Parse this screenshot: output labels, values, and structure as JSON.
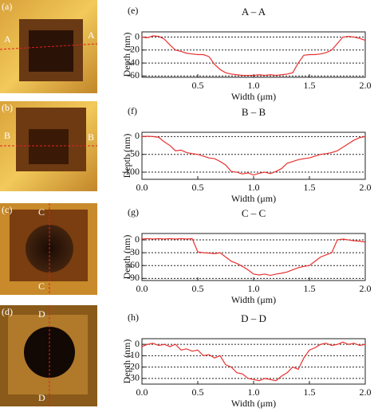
{
  "images": [
    {
      "label": "(a)",
      "markers": [
        "A",
        "A"
      ]
    },
    {
      "label": "(b)",
      "markers": [
        "B",
        "B"
      ]
    },
    {
      "label": "(c)",
      "markers": [
        "C",
        "C"
      ]
    },
    {
      "label": "(d)",
      "markers": [
        "D",
        "D"
      ]
    }
  ],
  "chart_data": [
    {
      "type": "line",
      "panel": "(e)",
      "title": "A – A",
      "xlabel": "Width (μm)",
      "ylabel": "Depth (nm)",
      "color": "#e8312f",
      "grid": true,
      "x": [
        0,
        0.05,
        0.1,
        0.15,
        0.2,
        0.25,
        0.3,
        0.35,
        0.4,
        0.45,
        0.5,
        0.55,
        0.6,
        0.65,
        0.7,
        0.75,
        0.8,
        0.85,
        0.9,
        0.95,
        1.0,
        1.05,
        1.1,
        1.15,
        1.2,
        1.25,
        1.3,
        1.35,
        1.4,
        1.45,
        1.5,
        1.55,
        1.6,
        1.65,
        1.7,
        1.75,
        1.8,
        1.85,
        1.9,
        1.95,
        2.0
      ],
      "values": [
        0,
        -1,
        2,
        1,
        -3,
        -12,
        -20,
        -22,
        -25,
        -26,
        -27,
        -27,
        -30,
        -42,
        -50,
        -55,
        -57,
        -58,
        -59,
        -59,
        -59,
        -58,
        -59,
        -58,
        -59,
        -58,
        -57,
        -55,
        -40,
        -28,
        -27,
        -27,
        -26,
        -24,
        -20,
        -10,
        0,
        1,
        0,
        -2,
        -5
      ],
      "xlim": [
        0,
        2
      ],
      "ylim": [
        -62,
        8
      ],
      "xticks": [
        0.5,
        {
          "value": 1,
          "label": "1.0"
        },
        1.5,
        {
          "value": 2,
          "label": "2.0"
        }
      ],
      "yticks": [
        0,
        -20,
        -40,
        -60
      ]
    },
    {
      "type": "line",
      "panel": "(f)",
      "title": "B – B",
      "xlabel": "Width (μm)",
      "ylabel": "Depth (nm)",
      "color": "#e8312f",
      "grid": true,
      "x": [
        0,
        0.05,
        0.1,
        0.15,
        0.2,
        0.25,
        0.3,
        0.35,
        0.4,
        0.45,
        0.5,
        0.55,
        0.6,
        0.65,
        0.7,
        0.75,
        0.8,
        0.85,
        0.9,
        0.95,
        1.0,
        1.05,
        1.1,
        1.15,
        1.2,
        1.25,
        1.3,
        1.35,
        1.4,
        1.45,
        1.5,
        1.55,
        1.6,
        1.65,
        1.7,
        1.75,
        1.8,
        1.85,
        1.9,
        1.95,
        2.0
      ],
      "values": [
        0,
        1,
        0,
        -2,
        -15,
        -25,
        -40,
        -38,
        -45,
        -48,
        -50,
        -55,
        -60,
        -62,
        -70,
        -80,
        -98,
        -100,
        -105,
        -102,
        -108,
        -103,
        -100,
        -104,
        -98,
        -90,
        -75,
        -70,
        -65,
        -62,
        -60,
        -55,
        -50,
        -48,
        -45,
        -40,
        -30,
        -20,
        -10,
        -3,
        0
      ],
      "xlim": [
        0,
        2
      ],
      "ylim": [
        -120,
        12
      ],
      "xticks": [
        {
          "value": 0,
          "label": "0.0"
        },
        0.5,
        {
          "value": 1,
          "label": "1.0"
        },
        1.5,
        {
          "value": 2,
          "label": "2.0"
        }
      ],
      "yticks": [
        0,
        -50,
        -100
      ]
    },
    {
      "type": "line",
      "panel": "(g)",
      "title": "C – C",
      "xlabel": "Width (μm)",
      "ylabel": "Depth (nm)",
      "color": "#e8312f",
      "grid": true,
      "x": [
        0,
        0.05,
        0.1,
        0.15,
        0.2,
        0.25,
        0.3,
        0.35,
        0.4,
        0.45,
        0.5,
        0.55,
        0.6,
        0.65,
        0.7,
        0.75,
        0.8,
        0.85,
        0.9,
        0.95,
        1.0,
        1.05,
        1.1,
        1.15,
        1.2,
        1.25,
        1.3,
        1.35,
        1.4,
        1.45,
        1.5,
        1.55,
        1.6,
        1.65,
        1.7,
        1.75,
        1.8,
        1.85,
        1.9,
        1.95,
        2.0
      ],
      "values": [
        2,
        3,
        2,
        3,
        2,
        3,
        2,
        3,
        2,
        3,
        -28,
        -30,
        -31,
        -32,
        -30,
        -40,
        -50,
        -55,
        -62,
        -70,
        -80,
        -82,
        -80,
        -83,
        -80,
        -78,
        -75,
        -70,
        -65,
        -62,
        -60,
        -50,
        -40,
        -35,
        -30,
        0,
        2,
        0,
        -2,
        -3,
        -5
      ],
      "xlim": [
        0,
        2
      ],
      "ylim": [
        -95,
        15
      ],
      "xticks": [
        {
          "value": 0,
          "label": "0.0"
        },
        0.5,
        {
          "value": 1,
          "label": "1.0"
        },
        1.5,
        {
          "value": 2,
          "label": "2.0"
        }
      ],
      "yticks": [
        0,
        -30,
        -60,
        -90
      ]
    },
    {
      "type": "line",
      "panel": "(h)",
      "title": "D – D",
      "xlabel": "Width (μm)",
      "ylabel": "Depth (nm)",
      "color": "#e8312f",
      "grid": true,
      "x": [
        0,
        0.05,
        0.1,
        0.15,
        0.2,
        0.25,
        0.3,
        0.35,
        0.4,
        0.45,
        0.5,
        0.55,
        0.6,
        0.65,
        0.7,
        0.75,
        0.8,
        0.85,
        0.9,
        0.95,
        1.0,
        1.05,
        1.1,
        1.15,
        1.2,
        1.25,
        1.3,
        1.35,
        1.4,
        1.45,
        1.5,
        1.55,
        1.6,
        1.65,
        1.7,
        1.75,
        1.8,
        1.85,
        1.9,
        1.95,
        2.0
      ],
      "values": [
        -2,
        0,
        1,
        -1,
        0,
        -2,
        0,
        -5,
        -4,
        -6,
        -5,
        -10,
        -9,
        -12,
        -10,
        -18,
        -20,
        -25,
        -26,
        -30,
        -31,
        -32,
        -30,
        -31,
        -32,
        -28,
        -25,
        -20,
        -22,
        -12,
        -5,
        -3,
        0,
        1,
        -1,
        0,
        2,
        0,
        1,
        -1,
        0
      ],
      "xlim": [
        0,
        2
      ],
      "ylim": [
        -35,
        5
      ],
      "xticks": [
        {
          "value": 0,
          "label": "0.0"
        },
        0.5,
        {
          "value": 1,
          "label": "1.0"
        },
        1.5,
        {
          "value": 2,
          "label": "2.0"
        }
      ],
      "yticks": [
        0,
        -10,
        -20,
        -30
      ]
    }
  ]
}
